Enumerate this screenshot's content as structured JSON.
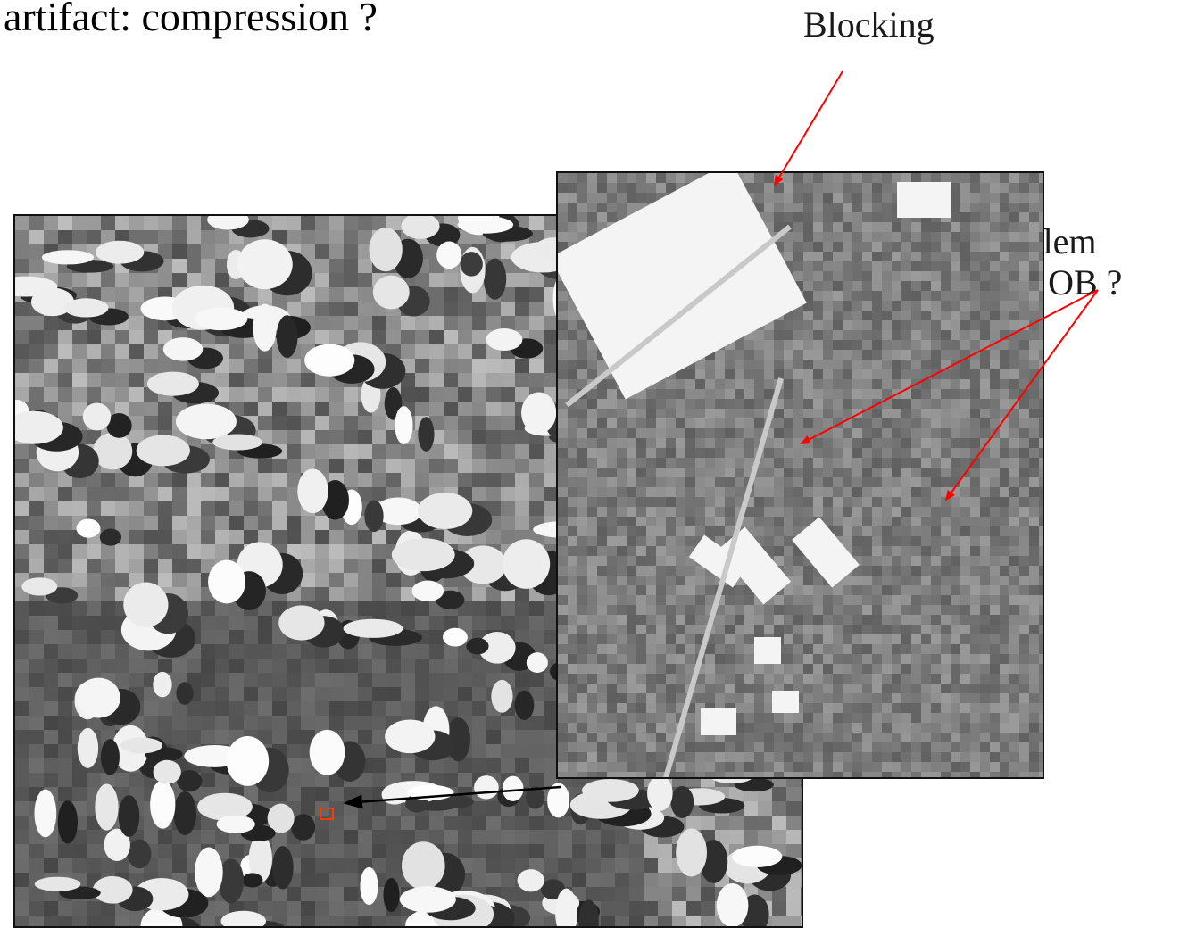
{
  "slide": {
    "title": "artifact: compression ?",
    "labels": {
      "blocking": "Blocking",
      "problem_line1": "Problem",
      "problem_line2": "with OB ?"
    }
  },
  "images": {
    "overview": "grayscale satellite image with fields and clouds",
    "zoom": "magnified crop showing blocky compression artifacts"
  },
  "colors": {
    "annotation_arrow": "#ff0000",
    "link_arrow": "#000000",
    "roi_box": "#ff3b00"
  }
}
